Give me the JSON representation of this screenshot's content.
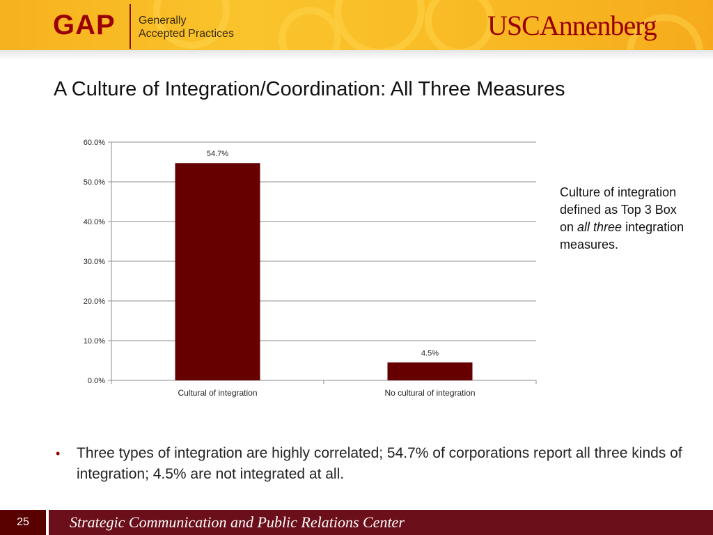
{
  "header": {
    "gap_logo": "GAP",
    "gap_line1": "Generally",
    "gap_line2": "Accepted Practices",
    "usc_logo_prefix": "USC",
    "usc_logo_suffix": "Annenberg"
  },
  "slide": {
    "title": "A Culture of Integration/Coordination: All Three Measures"
  },
  "side_note": {
    "part1": "Culture of integration defined as Top 3 Box on ",
    "emph": "all three",
    "part2": " integration measures."
  },
  "bullet": {
    "text": "Three types of integration are highly correlated; 54.7% of corporations report all three kinds of integration; 4.5% are not integrated at all."
  },
  "footer": {
    "page_number": "25",
    "center_name": "Strategic Communication and Public Relations Center"
  },
  "colors": {
    "bar": "#660000",
    "accent": "#990000",
    "footer": "#6b0f1a"
  },
  "chart_data": {
    "type": "bar",
    "categories": [
      "Cultural of integration",
      "No cultural of integration"
    ],
    "values": [
      54.7,
      4.5
    ],
    "data_labels": [
      "54.7%",
      "4.5%"
    ],
    "y_ticks": [
      "0.0%",
      "10.0%",
      "20.0%",
      "30.0%",
      "40.0%",
      "50.0%",
      "60.0%"
    ],
    "ylim": [
      0,
      60
    ],
    "grid": true,
    "legend": "none",
    "title": "",
    "xlabel": "",
    "ylabel": ""
  }
}
